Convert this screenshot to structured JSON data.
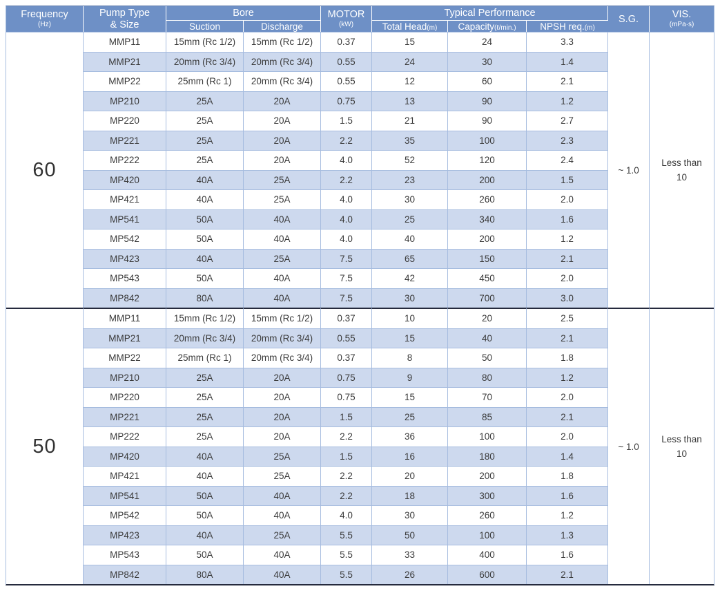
{
  "header": {
    "frequency": {
      "label": "Frequency",
      "unit": "(Hz)"
    },
    "pump_type": {
      "line1": "Pump Type",
      "line2": "& Size"
    },
    "bore": {
      "label": "Bore",
      "suction": "Suction",
      "discharge": "Discharge"
    },
    "motor": {
      "label": "MOTOR",
      "unit": "(kW)"
    },
    "performance": {
      "label": "Typical Performance",
      "total_head": "Total Head",
      "total_head_unit": "(m)",
      "capacity": "Capacity",
      "capacity_unit": "(ℓ/min.)",
      "npsh": "NPSH req.",
      "npsh_unit": "(m)"
    },
    "sg": {
      "label": "S.G."
    },
    "vis": {
      "label": "VIS.",
      "unit": "(mPa·s)"
    }
  },
  "sections": [
    {
      "frequency": "60",
      "sg": "~ 1.0",
      "vis_line1": "Less than",
      "vis_line2": "10",
      "rows": [
        [
          "MMP11",
          "15mm (Rc 1/2)",
          "15mm (Rc 1/2)",
          "0.37",
          "15",
          "24",
          "3.3"
        ],
        [
          "MMP21",
          "20mm (Rc 3/4)",
          "20mm (Rc 3/4)",
          "0.55",
          "24",
          "30",
          "1.4"
        ],
        [
          "MMP22",
          "25mm (Rc 1)",
          "20mm (Rc 3/4)",
          "0.55",
          "12",
          "60",
          "2.1"
        ],
        [
          "MP210",
          "25A",
          "20A",
          "0.75",
          "13",
          "90",
          "1.2"
        ],
        [
          "MP220",
          "25A",
          "20A",
          "1.5",
          "21",
          "90",
          "2.7"
        ],
        [
          "MP221",
          "25A",
          "20A",
          "2.2",
          "35",
          "100",
          "2.3"
        ],
        [
          "MP222",
          "25A",
          "20A",
          "4.0",
          "52",
          "120",
          "2.4"
        ],
        [
          "MP420",
          "40A",
          "25A",
          "2.2",
          "23",
          "200",
          "1.5"
        ],
        [
          "MP421",
          "40A",
          "25A",
          "4.0",
          "30",
          "260",
          "2.0"
        ],
        [
          "MP541",
          "50A",
          "40A",
          "4.0",
          "25",
          "340",
          "1.6"
        ],
        [
          "MP542",
          "50A",
          "40A",
          "4.0",
          "40",
          "200",
          "1.2"
        ],
        [
          "MP423",
          "40A",
          "25A",
          "7.5",
          "65",
          "150",
          "2.1"
        ],
        [
          "MP543",
          "50A",
          "40A",
          "7.5",
          "42",
          "450",
          "2.0"
        ],
        [
          "MP842",
          "80A",
          "40A",
          "7.5",
          "30",
          "700",
          "3.0"
        ]
      ]
    },
    {
      "frequency": "50",
      "sg": "~ 1.0",
      "vis_line1": "Less than",
      "vis_line2": "10",
      "rows": [
        [
          "MMP11",
          "15mm (Rc 1/2)",
          "15mm (Rc 1/2)",
          "0.37",
          "10",
          "20",
          "2.5"
        ],
        [
          "MMP21",
          "20mm (Rc 3/4)",
          "20mm (Rc 3/4)",
          "0.55",
          "15",
          "40",
          "2.1"
        ],
        [
          "MMP22",
          "25mm (Rc 1)",
          "20mm (Rc 3/4)",
          "0.37",
          "8",
          "50",
          "1.8"
        ],
        [
          "MP210",
          "25A",
          "20A",
          "0.75",
          "9",
          "80",
          "1.2"
        ],
        [
          "MP220",
          "25A",
          "20A",
          "0.75",
          "15",
          "70",
          "2.0"
        ],
        [
          "MP221",
          "25A",
          "20A",
          "1.5",
          "25",
          "85",
          "2.1"
        ],
        [
          "MP222",
          "25A",
          "20A",
          "2.2",
          "36",
          "100",
          "2.0"
        ],
        [
          "MP420",
          "40A",
          "25A",
          "1.5",
          "16",
          "180",
          "1.4"
        ],
        [
          "MP421",
          "40A",
          "25A",
          "2.2",
          "20",
          "200",
          "1.8"
        ],
        [
          "MP541",
          "50A",
          "40A",
          "2.2",
          "18",
          "300",
          "1.6"
        ],
        [
          "MP542",
          "50A",
          "40A",
          "4.0",
          "30",
          "260",
          "1.2"
        ],
        [
          "MP423",
          "40A",
          "25A",
          "5.5",
          "50",
          "100",
          "1.3"
        ],
        [
          "MP543",
          "50A",
          "40A",
          "5.5",
          "33",
          "400",
          "1.6"
        ],
        [
          "MP842",
          "80A",
          "40A",
          "5.5",
          "26",
          "600",
          "2.1"
        ]
      ]
    }
  ],
  "colors": {
    "header_bg": "#6e90c6",
    "header_text": "#ffffff",
    "stripe": "#cdd9ee",
    "border_light": "#a6bcdf",
    "border_dark": "#252a3d",
    "text": "#3a3a3a"
  }
}
